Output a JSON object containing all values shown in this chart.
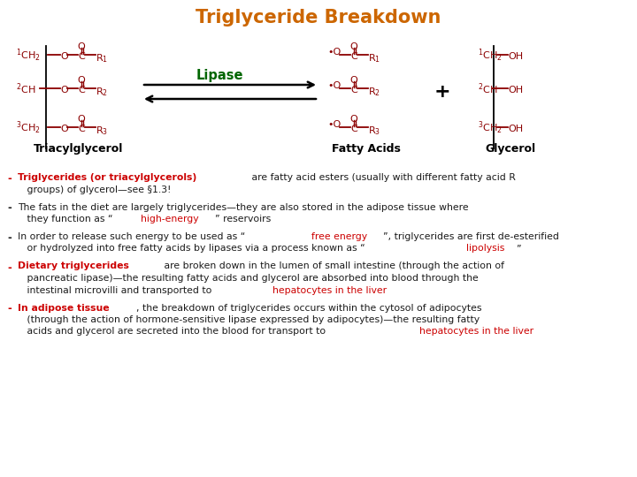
{
  "title": "Triglyceride Breakdown",
  "title_color": "#CC6600",
  "title_fontsize": 15,
  "bg_color": "#FFFFFF",
  "dark_red": "#8B0000",
  "green": "#006600",
  "red": "#CC0000",
  "black": "#1a1a1a",
  "bullets": [
    {
      "dash_color": "#CC0000",
      "lines": [
        [
          {
            "text": "Triglycerides (or triacylglycerols)",
            "color": "#CC0000",
            "bold": true
          },
          {
            "text": " are fatty acid esters (usually with different fatty acid R",
            "color": "#1a1a1a",
            "bold": false
          }
        ],
        [
          {
            "text": "   groups) of glycerol—see §1.3!",
            "color": "#1a1a1a",
            "bold": false
          }
        ]
      ]
    },
    {
      "dash_color": "#1a1a1a",
      "lines": [
        [
          {
            "text": "The fats in the diet are largely triglycerides—they are also stored in the adipose tissue where",
            "color": "#1a1a1a",
            "bold": false
          }
        ],
        [
          {
            "text": "   they function as “",
            "color": "#1a1a1a",
            "bold": false
          },
          {
            "text": "high-energy",
            "color": "#CC0000",
            "bold": false
          },
          {
            "text": "” reservoirs",
            "color": "#1a1a1a",
            "bold": false
          }
        ]
      ]
    },
    {
      "dash_color": "#1a1a1a",
      "lines": [
        [
          {
            "text": "In order to release such energy to be used as “",
            "color": "#1a1a1a",
            "bold": false
          },
          {
            "text": "free energy",
            "color": "#CC0000",
            "bold": false
          },
          {
            "text": "”, triglycerides are first de-esterified",
            "color": "#1a1a1a",
            "bold": false
          }
        ],
        [
          {
            "text": "   or hydrolyzed into free fatty acids by lipases via a process known as “",
            "color": "#1a1a1a",
            "bold": false
          },
          {
            "text": "lipolysis",
            "color": "#CC0000",
            "bold": false
          },
          {
            "text": "”",
            "color": "#1a1a1a",
            "bold": false
          }
        ]
      ]
    },
    {
      "dash_color": "#CC0000",
      "lines": [
        [
          {
            "text": "Dietary triglycerides",
            "color": "#CC0000",
            "bold": true
          },
          {
            "text": " are broken down in the lumen of small intestine (through the action of",
            "color": "#1a1a1a",
            "bold": false
          }
        ],
        [
          {
            "text": "   pancreatic lipase)—the resulting fatty acids and glycerol are absorbed into blood through the",
            "color": "#1a1a1a",
            "bold": false
          }
        ],
        [
          {
            "text": "   intestinal microvilli and transported to ",
            "color": "#1a1a1a",
            "bold": false
          },
          {
            "text": "hepatocytes in the liver",
            "color": "#CC0000",
            "bold": false
          }
        ]
      ]
    },
    {
      "dash_color": "#CC0000",
      "lines": [
        [
          {
            "text": "In adipose tissue",
            "color": "#CC0000",
            "bold": true
          },
          {
            "text": ", the breakdown of triglycerides occurs within the cytosol of adipocytes",
            "color": "#1a1a1a",
            "bold": false
          }
        ],
        [
          {
            "text": "   (through the action of hormone-sensitive lipase expressed by adipocytes)—the resulting fatty",
            "color": "#1a1a1a",
            "bold": false
          }
        ],
        [
          {
            "text": "   acids and glycerol are secreted into the blood for transport to ",
            "color": "#1a1a1a",
            "bold": false
          },
          {
            "text": "hepatocytes in the liver",
            "color": "#CC0000",
            "bold": false
          }
        ]
      ]
    }
  ]
}
